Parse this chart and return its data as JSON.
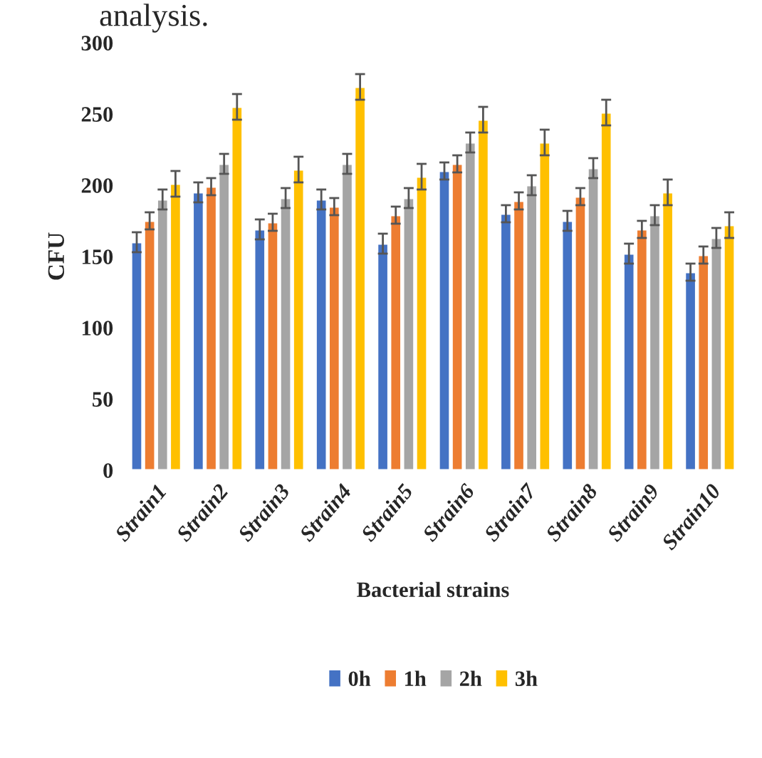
{
  "chart_data": {
    "type": "bar",
    "xlabel": "Bacterial strains",
    "ylabel": "CFU",
    "annotations": [
      "analysis."
    ],
    "categories": [
      "Strain1",
      "Strain2",
      "Strain3",
      "Strain4",
      "Strain5",
      "Strain6",
      "Strain7",
      "Strain8",
      "Strain9",
      "Strain10"
    ],
    "series": [
      {
        "name": "0h",
        "color": "#4472c4",
        "values": [
          160,
          195,
          169,
          190,
          159,
          210,
          180,
          175,
          152,
          139
        ],
        "errors": [
          7,
          7,
          7,
          7,
          7,
          6,
          6,
          7,
          7,
          6
        ]
      },
      {
        "name": "1h",
        "color": "#ed7d31",
        "values": [
          175,
          199,
          174,
          185,
          179,
          215,
          189,
          192,
          169,
          151
        ],
        "errors": [
          6,
          6,
          6,
          6,
          6,
          6,
          6,
          6,
          6,
          6
        ]
      },
      {
        "name": "2h",
        "color": "#a5a5a5",
        "values": [
          190,
          215,
          191,
          215,
          191,
          230,
          200,
          212,
          179,
          163
        ],
        "errors": [
          7,
          7,
          7,
          7,
          7,
          7,
          7,
          7,
          7,
          7
        ]
      },
      {
        "name": "3h",
        "color": "#ffc000",
        "values": [
          201,
          255,
          211,
          269,
          206,
          246,
          230,
          251,
          195,
          172
        ],
        "errors": [
          9,
          9,
          9,
          9,
          9,
          9,
          9,
          9,
          9,
          9
        ]
      }
    ],
    "ylim": [
      0,
      300
    ],
    "yticks": [
      0,
      50,
      100,
      150,
      200,
      250,
      300
    ],
    "grid": false,
    "legend": "bottom"
  }
}
